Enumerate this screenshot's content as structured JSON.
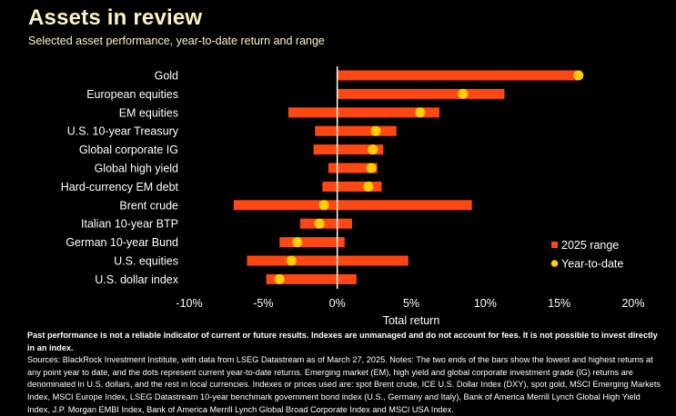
{
  "header": {
    "title": "Assets in review",
    "subtitle": "Selected asset performance, year-to-date return and range"
  },
  "chart_data": {
    "type": "bar",
    "subtype": "range-bar-with-dot",
    "title": "Assets in review",
    "subtitle": "Selected asset performance, year-to-date return and range",
    "xlabel": "Total return",
    "ylabel": "",
    "xlim": [
      -10,
      20
    ],
    "x_ticks": [
      -10,
      -5,
      0,
      5,
      10,
      15,
      20
    ],
    "x_tick_labels": [
      "-10%",
      "-5%",
      "0%",
      "5%",
      "10%",
      "15%",
      "20%"
    ],
    "grid": false,
    "legend_position": "bottom-right",
    "colors": {
      "range": "#ff4713",
      "ytd": "#ffcd00",
      "zero_line": "#ffffff"
    },
    "categories": [
      "Gold",
      "European equities",
      "EM equities",
      "U.S. 10-year Treasury",
      "Global corporate IG",
      "Global high yield",
      "Hard-currency EM debt",
      "Brent crude",
      "Italian 10-year BTP",
      "German 10-year Bund",
      "U.S. equities",
      "U.S. dollar index"
    ],
    "series": [
      {
        "name": "2025 range",
        "kind": "range",
        "low": [
          0.0,
          0.0,
          -3.3,
          -1.5,
          -1.6,
          -0.6,
          -1.0,
          -7.0,
          -2.5,
          -3.9,
          -6.1,
          -4.8
        ],
        "high": [
          16.3,
          11.3,
          6.9,
          4.0,
          3.1,
          2.7,
          3.0,
          9.1,
          1.0,
          0.5,
          4.8,
          1.3
        ]
      },
      {
        "name": "Year-to-date",
        "kind": "dot",
        "values": [
          16.3,
          8.5,
          5.6,
          2.6,
          2.4,
          2.3,
          2.1,
          -0.9,
          -1.2,
          -2.7,
          -3.1,
          -3.9
        ]
      }
    ],
    "legend": [
      {
        "label": "2025 range",
        "marker": "square"
      },
      {
        "label": "Year-to-date",
        "marker": "circle"
      }
    ]
  },
  "footer": {
    "disclaimer": "Past performance is not a reliable indicator of current or future results. Indexes are unmanaged and do not account for fees. It is not possible to invest directly in an index.",
    "sources": "Sources: BlackRock Investment Institute, with data from LSEG Datastream as of March 27, 2025. Notes: The two ends of the bars show the lowest and highest returns at any point year to date, and the dots represent current year-to-date returns. Emerging market (EM), high yield and global corporate investment grade (IG) returns are denominated in U.S. dollars, and the rest in local currencies. Indexes or prices used are: spot Brent crude, ICE U.S. Dollar Index (DXY), spot gold, MSCI Emerging Markets Index, MSCI Europe Index, LSEG Datastream 10-year benchmark government bond index (U.S., Germany and Italy), Bank of America Merrill Lynch Global High Yield Index, J.P. Morgan EMBI Index, Bank of America Merrill Lynch Global Broad Corporate Index and MSCI USA Index."
  }
}
